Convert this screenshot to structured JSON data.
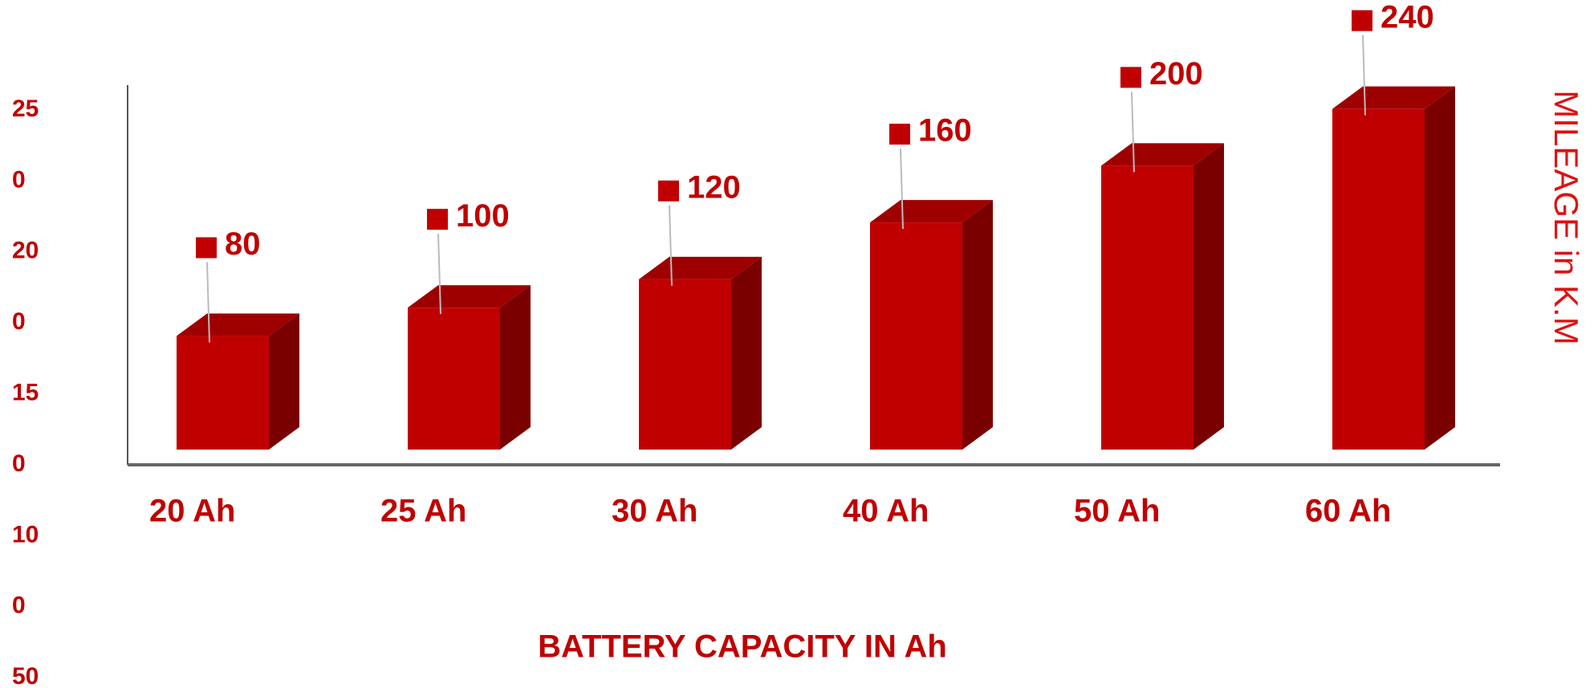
{
  "chart_data": {
    "type": "bar3d",
    "x_label": "BATTERY CAPACITY IN Ah",
    "y_label": "MILEAGE in K.M",
    "y_axis_text": [
      "25",
      "0",
      "20",
      "0",
      "15",
      "0",
      "10",
      "0",
      "50"
    ],
    "categories": [
      "20 Ah",
      "25 Ah",
      "30 Ah",
      "40 Ah",
      "50 Ah",
      "60 Ah"
    ],
    "values": [
      80,
      100,
      120,
      160,
      200,
      240
    ],
    "color": "#c00000",
    "ylim": [
      0,
      250
    ]
  }
}
